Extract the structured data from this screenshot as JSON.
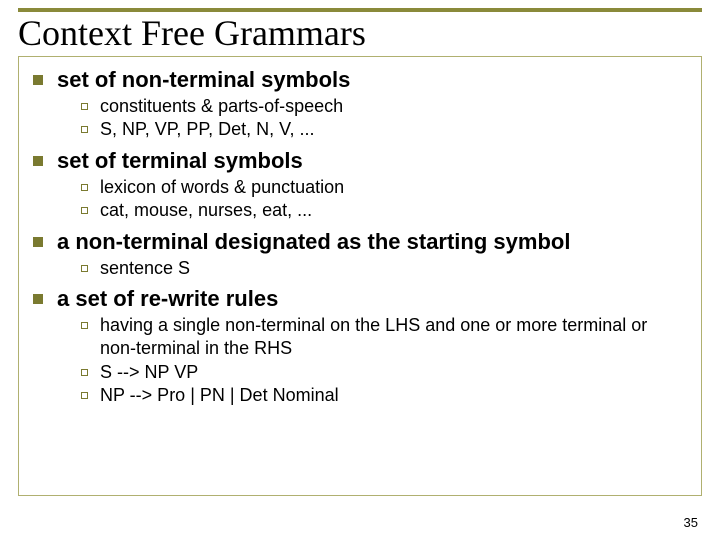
{
  "colors": {
    "accent_line": "#8a8a3a",
    "bullet": "#7a7a30",
    "box_border": "#b0b070",
    "background": "#ffffff",
    "text": "#000000"
  },
  "typography": {
    "title_font": "Comic Sans MS",
    "body_font": "Verdana",
    "title_size_pt": 36,
    "l1_size_pt": 22,
    "l2_size_pt": 18,
    "page_num_size_pt": 13
  },
  "title": "Context Free Grammars",
  "items": [
    {
      "label": "set of non-terminal symbols",
      "sub": [
        "constituents & parts-of-speech",
        "S, NP, VP, PP, Det, N, V, ..."
      ]
    },
    {
      "label": "set of terminal symbols",
      "sub": [
        "lexicon of words & punctuation",
        "cat, mouse, nurses, eat, ..."
      ]
    },
    {
      "label": "a non-terminal designated as the starting symbol",
      "sub": [
        "sentence S"
      ]
    },
    {
      "label": "a set of re-write rules",
      "sub": [
        "having a single non-terminal on the LHS and one or more terminal or non-terminal in the RHS",
        "S --> NP VP",
        "NP --> Pro | PN | Det Nominal"
      ]
    }
  ],
  "page_number": "35"
}
